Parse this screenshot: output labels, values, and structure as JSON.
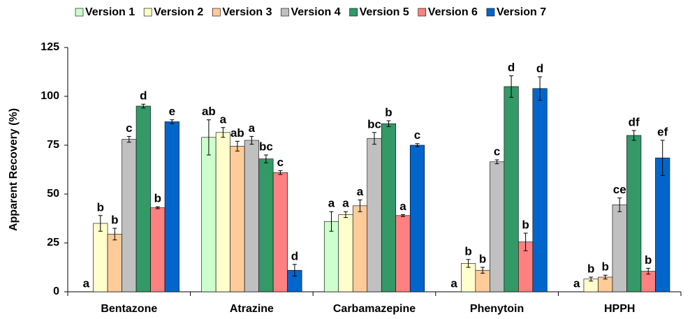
{
  "chart_data": {
    "type": "bar",
    "ylabel": "Apparent Recovery (%)",
    "categories": [
      "Bentazone",
      "Atrazine",
      "Carbamazepine",
      "Phenytoin",
      "HPPH"
    ],
    "ylim": [
      0,
      125
    ],
    "yticks": [
      0,
      25,
      50,
      75,
      100,
      125
    ],
    "grid": false,
    "legend": "top",
    "series": [
      {
        "name": "Version 1",
        "color": "#ccffcc",
        "values": [
          0,
          79,
          36,
          0,
          0
        ],
        "errors": [
          0,
          9,
          5,
          0,
          0
        ],
        "annotations": [
          "a",
          "ab",
          "a",
          "a",
          "a"
        ]
      },
      {
        "name": "Version 2",
        "color": "#ffffcc",
        "values": [
          35,
          81.5,
          39.5,
          14.5,
          6.5
        ],
        "errors": [
          4,
          2.5,
          1.5,
          2,
          1
        ],
        "annotations": [
          "b",
          "a",
          "a",
          "b",
          "b"
        ]
      },
      {
        "name": "Version 3",
        "color": "#ffcc99",
        "values": [
          29.5,
          74.5,
          44,
          11,
          7.5
        ],
        "errors": [
          3,
          2.5,
          3,
          1.5,
          1
        ],
        "annotations": [
          "b",
          "ab",
          "a",
          "b",
          "b"
        ]
      },
      {
        "name": "Version 4",
        "color": "#c0c0c0",
        "values": [
          78,
          77.5,
          78.5,
          66.5,
          44.5
        ],
        "errors": [
          1.5,
          2,
          3,
          1,
          3.5
        ],
        "annotations": [
          "c",
          "a",
          "bc",
          "c",
          "ce"
        ]
      },
      {
        "name": "Version 5",
        "color": "#339966",
        "values": [
          95,
          68,
          86,
          105,
          80
        ],
        "errors": [
          1,
          2,
          1.5,
          5.5,
          2.5
        ],
        "annotations": [
          "d",
          "bc",
          "b",
          "d",
          "df"
        ]
      },
      {
        "name": "Version 6",
        "color": "#ff8080",
        "values": [
          43,
          61,
          39,
          25.5,
          10.5
        ],
        "errors": [
          0.5,
          1,
          0.5,
          4.5,
          1.5
        ],
        "annotations": [
          "b",
          "c",
          "a",
          "b",
          "b"
        ]
      },
      {
        "name": "Version 7",
        "color": "#0066cc",
        "values": [
          87,
          11,
          75,
          104,
          68.5
        ],
        "errors": [
          1,
          3,
          0.8,
          6,
          9
        ],
        "annotations": [
          "e",
          "d",
          "c",
          "d",
          "ef"
        ]
      }
    ]
  }
}
